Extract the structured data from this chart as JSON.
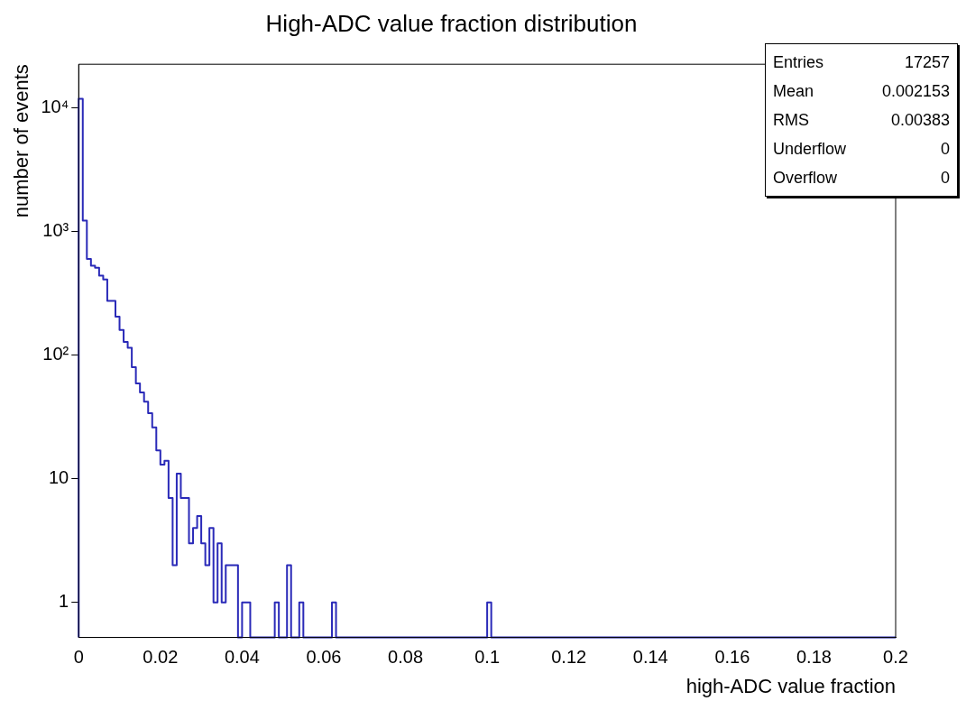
{
  "chart_data": {
    "type": "histogram",
    "title": "High-ADC value fraction distribution",
    "xlabel": "high-ADC value fraction",
    "ylabel": "number of events",
    "bins": [
      0,
      0.001,
      0.002,
      0.003,
      0.004,
      0.005,
      0.006,
      0.007,
      0.008,
      0.009,
      0.01,
      0.011,
      0.012,
      0.013,
      0.014,
      0.015,
      0.016,
      0.017,
      0.018,
      0.019,
      0.02,
      0.021,
      0.022,
      0.023,
      0.024,
      0.025,
      0.026,
      0.027,
      0.028,
      0.029,
      0.03,
      0.031,
      0.032,
      0.033,
      0.034,
      0.035,
      0.036,
      0.037,
      0.038,
      0.039,
      0.04,
      0.041,
      0.042,
      0.043,
      0.044,
      0.045,
      0.046,
      0.047,
      0.048,
      0.049,
      0.05,
      0.051,
      0.052,
      0.053,
      0.054,
      0.055,
      0.056,
      0.057,
      0.058,
      0.059,
      0.06,
      0.061,
      0.062,
      0.063,
      0.064,
      0.065,
      0.066,
      0.067,
      0.068,
      0.069,
      0.07,
      0.071,
      0.072,
      0.073,
      0.074,
      0.075,
      0.076,
      0.077,
      0.078,
      0.079,
      0.08,
      0.081,
      0.082,
      0.083,
      0.084,
      0.085,
      0.086,
      0.087,
      0.088,
      0.089,
      0.09,
      0.091,
      0.092,
      0.093,
      0.094,
      0.095,
      0.096,
      0.097,
      0.098,
      0.099,
      0.1,
      0.101,
      0.102,
      0.103,
      0.104,
      0.105,
      0.106,
      0.107,
      0.108,
      0.109,
      0.11,
      0.111,
      0.112,
      0.113,
      0.114,
      0.115,
      0.116,
      0.117,
      0.118,
      0.119,
      0.12,
      0.121,
      0.122,
      0.123,
      0.124,
      0.125,
      0.126,
      0.127,
      0.128,
      0.129,
      0.13,
      0.131,
      0.132,
      0.133,
      0.134,
      0.135,
      0.136,
      0.137,
      0.138,
      0.139,
      0.14,
      0.141,
      0.142,
      0.143,
      0.144,
      0.145,
      0.146,
      0.147,
      0.148,
      0.149,
      0.15,
      0.151,
      0.152,
      0.153,
      0.154,
      0.155,
      0.156,
      0.157,
      0.158,
      0.159,
      0.16,
      0.161,
      0.162,
      0.163,
      0.164,
      0.165,
      0.166,
      0.167,
      0.168,
      0.169,
      0.17,
      0.171,
      0.172,
      0.173,
      0.174,
      0.175,
      0.176,
      0.177,
      0.178,
      0.179,
      0.18,
      0.181,
      0.182,
      0.183,
      0.184,
      0.185,
      0.186,
      0.187,
      0.188,
      0.189,
      0.19,
      0.191,
      0.192,
      0.193,
      0.194,
      0.195,
      0.196,
      0.197,
      0.198,
      0.199,
      0.2
    ],
    "values": [
      11860,
      1230,
      600,
      530,
      510,
      440,
      410,
      275,
      275,
      205,
      160,
      128,
      115,
      80,
      59,
      50,
      42,
      34,
      26,
      17,
      13,
      14,
      7,
      2,
      11,
      7,
      7,
      3,
      4,
      5,
      3,
      2,
      4,
      1,
      3,
      1,
      2,
      2,
      2,
      null,
      1,
      1,
      null,
      null,
      null,
      null,
      null,
      null,
      1,
      null,
      null,
      2,
      null,
      null,
      1,
      null,
      null,
      null,
      null,
      null,
      null,
      null,
      1,
      null,
      null,
      null,
      null,
      null,
      null,
      null,
      null,
      null,
      null,
      null,
      null,
      null,
      null,
      null,
      null,
      null,
      null,
      null,
      null,
      null,
      null,
      null,
      null,
      null,
      null,
      null,
      null,
      null,
      null,
      null,
      null,
      null,
      null,
      null,
      null,
      null,
      1,
      null,
      null,
      null,
      null,
      null,
      null,
      null,
      null,
      null,
      null,
      null,
      null,
      null,
      null,
      null,
      null,
      null,
      null,
      null,
      null,
      null,
      null,
      null,
      null,
      null,
      null,
      null,
      null,
      null,
      null,
      null,
      null,
      null,
      null,
      null,
      null,
      null,
      null,
      null,
      null,
      null,
      null,
      null,
      null,
      null,
      null,
      null,
      null,
      null,
      null,
      null,
      null,
      null,
      null,
      null,
      null,
      null,
      null,
      null,
      null,
      null,
      null,
      null,
      null,
      null,
      null,
      null,
      null,
      null,
      null,
      null,
      null,
      null,
      null,
      null,
      null,
      null,
      null,
      null,
      null,
      null,
      null,
      null,
      null,
      null,
      null,
      null,
      null,
      null,
      null,
      null,
      null,
      null,
      null,
      null,
      null,
      null,
      null,
      null
    ],
    "color": "#2a2ab8",
    "log": "y",
    "grid": false,
    "legend": false,
    "xlim": [
      0,
      0.2
    ],
    "xticks": [
      0,
      0.02,
      0.04,
      0.06,
      0.08,
      0.1,
      0.12,
      0.14,
      0.16,
      0.18,
      0.2
    ],
    "ylim": [
      0.52,
      22600
    ],
    "yticks": [
      1,
      10,
      {
        "value": 100,
        "label": "10²"
      },
      {
        "value": 1000,
        "label": "10³"
      },
      {
        "value": 10000,
        "label": "10⁴"
      }
    ],
    "annotations": [
      "Entries",
      "17257",
      "Mean",
      "0.002153",
      "RMS",
      "0.00383",
      "Underflow",
      "0",
      "Overflow",
      "0"
    ]
  }
}
